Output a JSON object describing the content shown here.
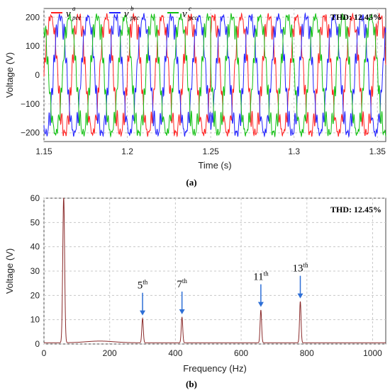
{
  "chart_data": [
    {
      "type": "line",
      "title": "",
      "xlabel": "Time (s)",
      "ylabel": "Voltage (V)",
      "xlim": [
        1.15,
        1.355
      ],
      "ylim": [
        -230,
        230
      ],
      "xticks": [
        1.15,
        1.2,
        1.25,
        1.3,
        1.35
      ],
      "xtick_labels": [
        "1.15",
        "1.2",
        "1.25",
        "1.3",
        "1.35"
      ],
      "yticks": [
        200,
        100,
        0,
        -100,
        -200
      ],
      "ytick_labels": [
        "200",
        "100",
        "0",
        "−100",
        "−200"
      ],
      "grid": true,
      "legend_position": "top-left",
      "annotation": "THD: 12.45%",
      "waveform": {
        "amplitude": 190,
        "frequency_hz": 60,
        "phase_shift_at_s": 1.25
      },
      "series": [
        {
          "name": "v",
          "superscript": "a",
          "subscript": "pcc",
          "color": "#ff2020",
          "phase_deg": 0
        },
        {
          "name": "v",
          "superscript": "b",
          "subscript": "pcc",
          "color": "#2020ff",
          "phase_deg": -120
        },
        {
          "name": "v",
          "superscript": "c",
          "subscript": "pcc",
          "color": "#10c010",
          "phase_deg": 120
        }
      ]
    },
    {
      "type": "line",
      "title": "",
      "xlabel": "Frequency (Hz)",
      "ylabel": "Voltage (V)",
      "xlim": [
        0,
        1040
      ],
      "ylim": [
        0,
        60
      ],
      "xticks": [
        0,
        200,
        400,
        600,
        800,
        1000
      ],
      "xtick_labels": [
        "0",
        "200",
        "400",
        "600",
        "800",
        "1000"
      ],
      "yticks": [
        0,
        10,
        20,
        30,
        40,
        50,
        60
      ],
      "ytick_labels": [
        "0",
        "10",
        "20",
        "30",
        "40",
        "50",
        "60"
      ],
      "grid": true,
      "annotation": "THD: 12.45%",
      "series": [
        {
          "name": "spectrum",
          "color": "#8a2a2a"
        }
      ],
      "peaks": [
        {
          "freq": 60,
          "value": 60
        },
        {
          "freq": 300,
          "value": 10
        },
        {
          "freq": 420,
          "value": 10.5
        },
        {
          "freq": 660,
          "value": 13.5
        },
        {
          "freq": 780,
          "value": 17
        }
      ],
      "harmonic_labels": [
        {
          "base": "5",
          "sup": "th",
          "freq": 300,
          "value": 10
        },
        {
          "base": "7",
          "sup": "th",
          "freq": 420,
          "value": 10.5
        },
        {
          "base": "11",
          "sup": "th",
          "freq": 660,
          "value": 13.5
        },
        {
          "base": "13",
          "sup": "th",
          "freq": 780,
          "value": 17
        }
      ],
      "arrow_color": "#2e6fd6"
    }
  ],
  "captions": {
    "a": "(a)",
    "b": "(b)"
  }
}
